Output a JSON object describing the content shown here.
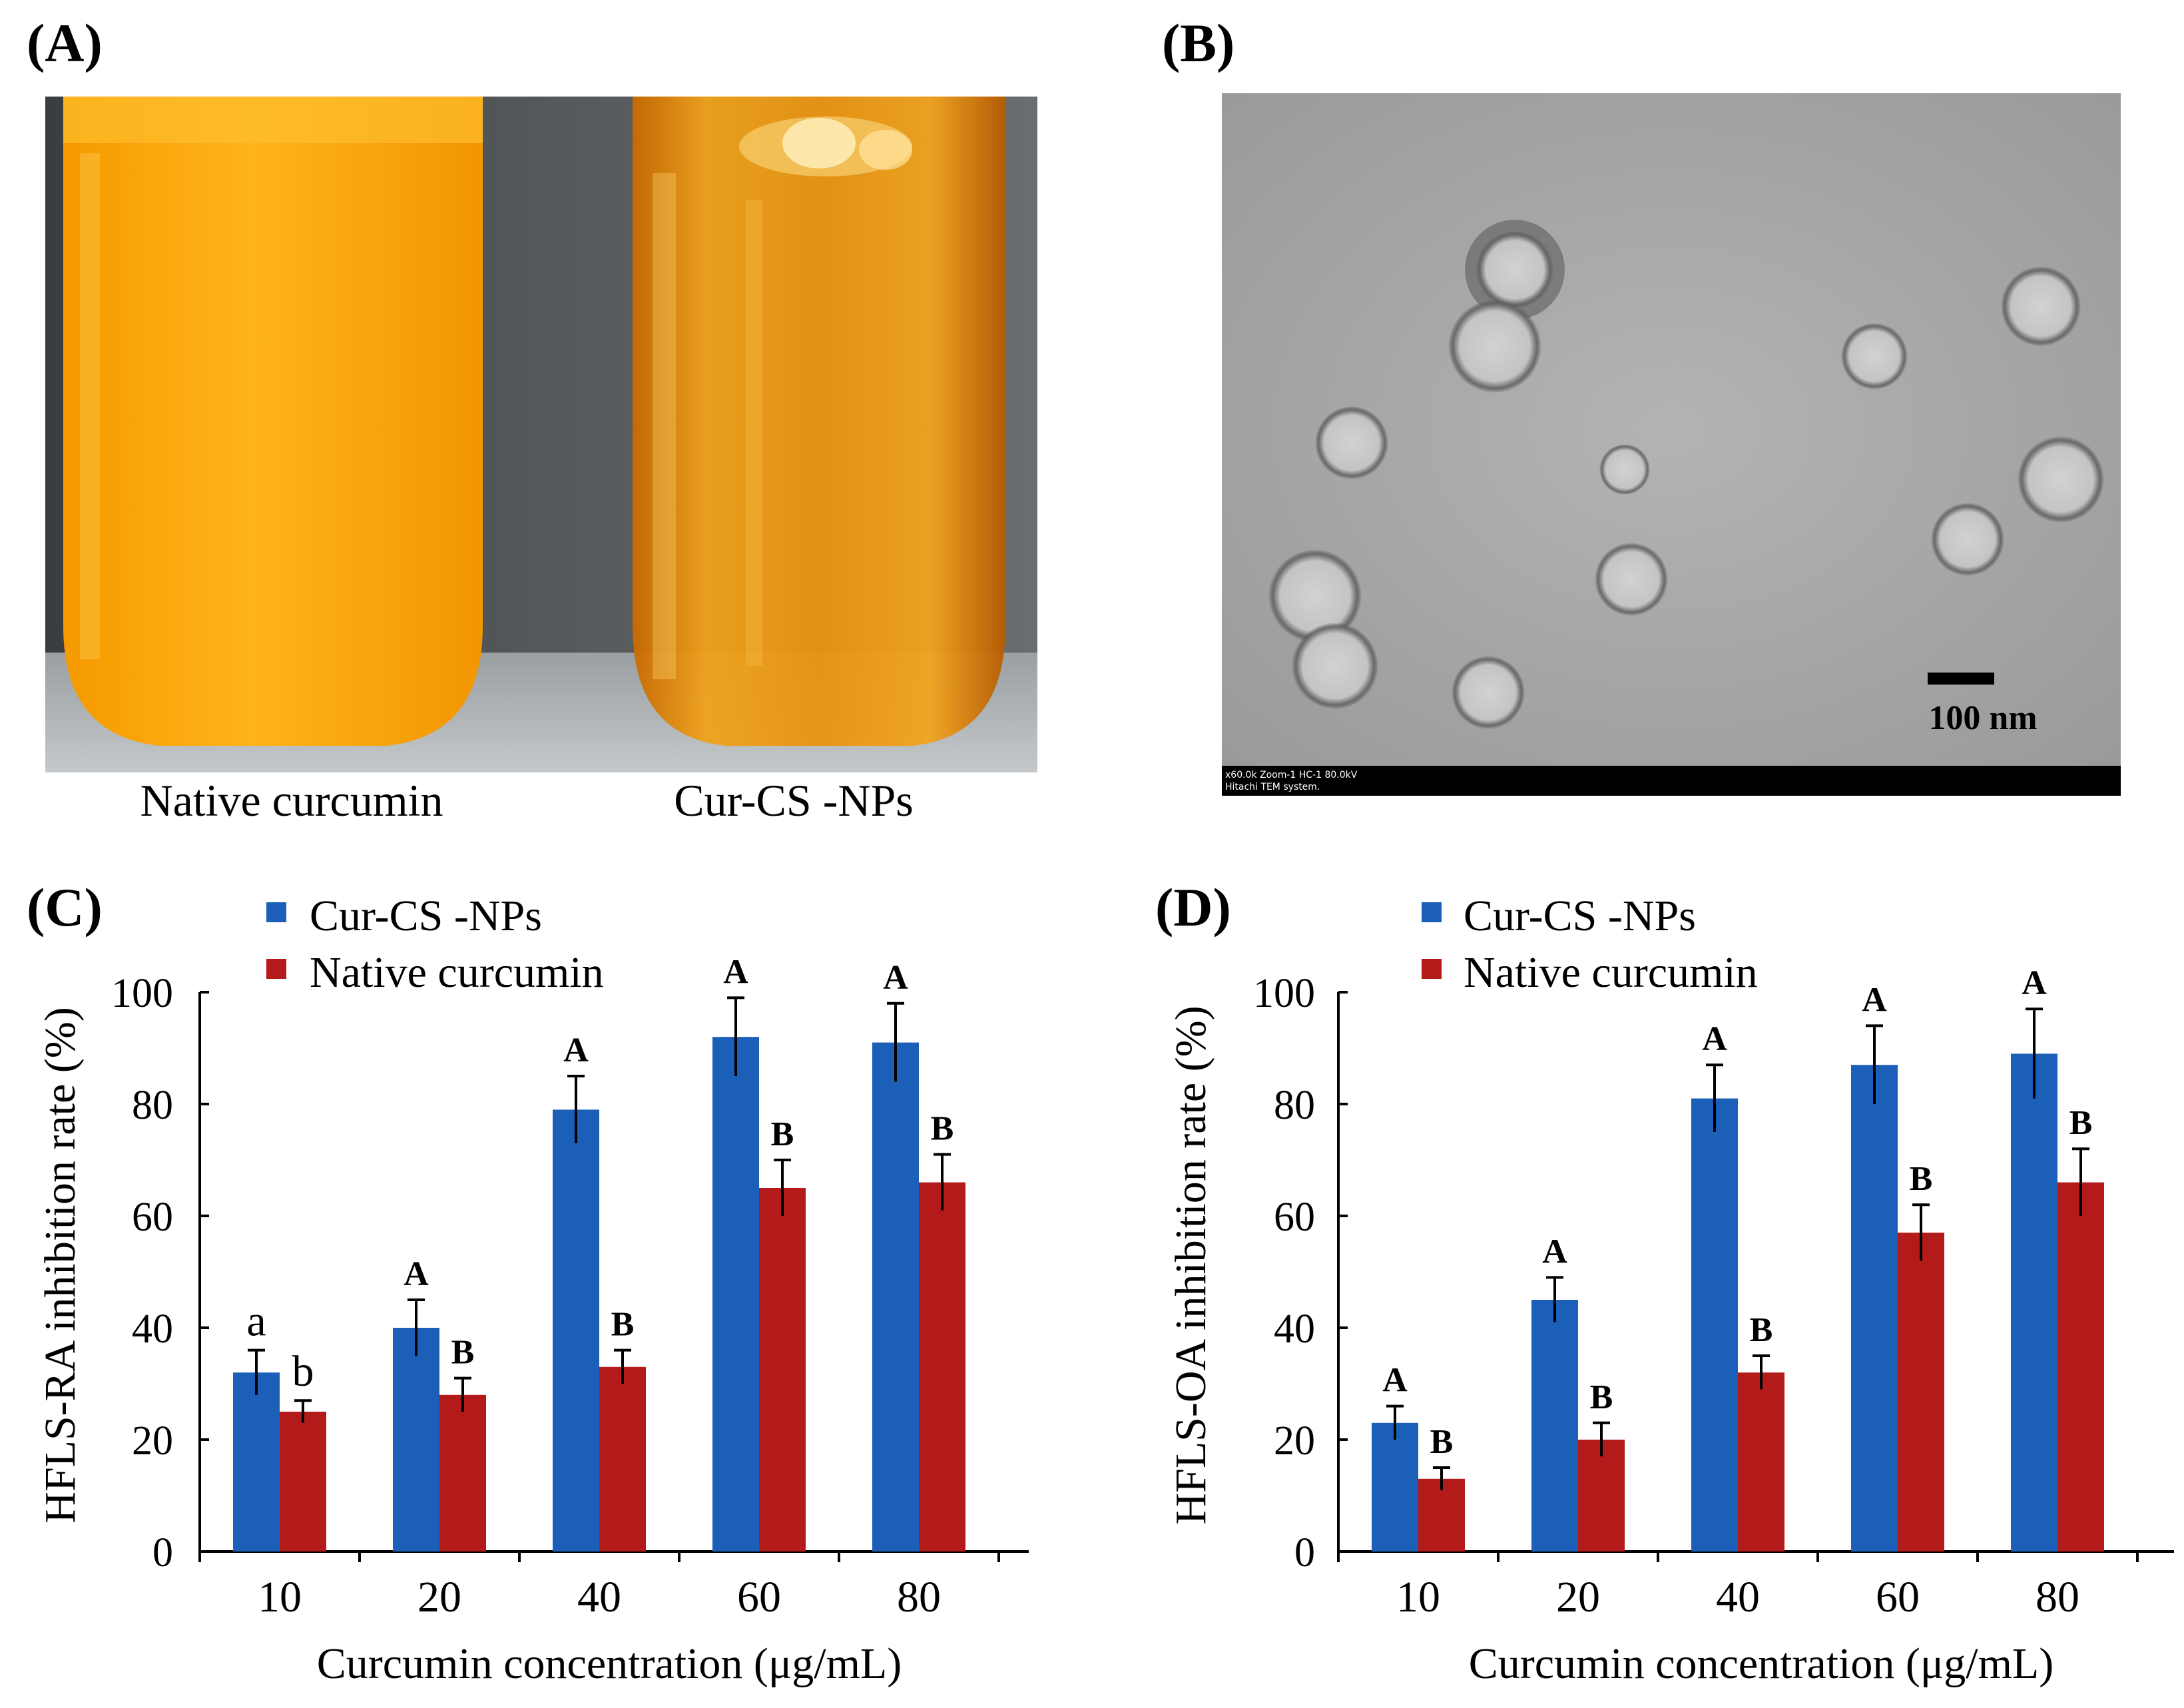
{
  "panels": {
    "A": {
      "label": "(A)",
      "caption_left": "Native curcumin",
      "caption_right": "Cur-CS -NPs"
    },
    "B": {
      "label": "(B)",
      "scale_bar_text": "100 nm",
      "footer_line1": "x60.0k Zoom-1 HC-1 80.0kV",
      "footer_line2": "Hitachi TEM system."
    }
  },
  "colors": {
    "cur_cs_nps": "#1b5fb8",
    "native_curcumin": "#b31a1a",
    "axis": "#000000"
  },
  "chart_data": [
    {
      "panel": "C",
      "label": "(C)",
      "type": "bar",
      "categories": [
        "10",
        "20",
        "40",
        "60",
        "80"
      ],
      "series": [
        {
          "name": "Cur-CS -NPs",
          "values": [
            32,
            40,
            79,
            92,
            91
          ],
          "errors": [
            4,
            5,
            6,
            7,
            7
          ],
          "letters": [
            "a",
            "A",
            "A",
            "A",
            "A"
          ]
        },
        {
          "name": "Native curcumin",
          "values": [
            25,
            28,
            33,
            65,
            66
          ],
          "errors": [
            2,
            3,
            3,
            5,
            5
          ],
          "letters": [
            "b",
            "B",
            "B",
            "B",
            "B"
          ]
        }
      ],
      "xlabel": "Curcumin concentration (μg/mL)",
      "ylabel": "HFLS-RA inhibition rate  (%)",
      "ylim": [
        0,
        100
      ],
      "yticks": [
        0,
        20,
        40,
        60,
        80,
        100
      ],
      "legend": "top"
    },
    {
      "panel": "D",
      "label": "(D)",
      "type": "bar",
      "categories": [
        "10",
        "20",
        "40",
        "60",
        "80"
      ],
      "series": [
        {
          "name": "Cur-CS -NPs",
          "values": [
            23,
            45,
            81,
            87,
            89
          ],
          "errors": [
            3,
            4,
            6,
            7,
            8
          ],
          "letters": [
            "A",
            "A",
            "A",
            "A",
            "A"
          ]
        },
        {
          "name": "Native curcumin",
          "values": [
            13,
            20,
            32,
            57,
            66
          ],
          "errors": [
            2,
            3,
            3,
            5,
            6
          ],
          "letters": [
            "B",
            "B",
            "B",
            "B",
            "B"
          ]
        }
      ],
      "xlabel": "Curcumin concentration (μg/mL)",
      "ylabel": "HFLS-OA inhibition rate  (%)",
      "ylim": [
        0,
        100
      ],
      "yticks": [
        0,
        20,
        40,
        60,
        80,
        100
      ],
      "legend": "top"
    }
  ]
}
